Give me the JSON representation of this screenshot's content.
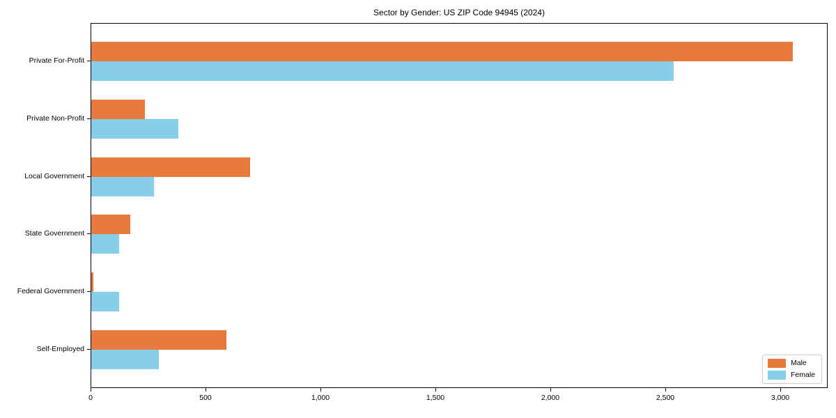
{
  "chart_data": {
    "type": "bar",
    "orientation": "horizontal",
    "title": "Sector by Gender: US ZIP Code 94945 (2024)",
    "categories": [
      "Private For-Profit",
      "Private Non-Profit",
      "Local Government",
      "State Government",
      "Federal Government",
      "Self-Employed"
    ],
    "series": [
      {
        "name": "Male",
        "color": "#E87A3D",
        "values": [
          3050,
          234,
          692,
          170,
          9,
          588
        ]
      },
      {
        "name": "Female",
        "color": "#87CEEB",
        "values": [
          2533,
          379,
          273,
          121,
          121,
          294
        ]
      }
    ],
    "xlabel": "",
    "ylabel": "",
    "xlim": [
      0,
      3200
    ],
    "xticks": [
      0,
      500,
      1000,
      1500,
      2000,
      2500,
      3000
    ],
    "xtick_labels": [
      "0",
      "500",
      "1,000",
      "1,500",
      "2,000",
      "2,500",
      "3,000"
    ],
    "grid": false,
    "legend_position": "lower right",
    "plot_border_color": "#000000",
    "background_color": "#ffffff",
    "text_color": "#000000"
  }
}
